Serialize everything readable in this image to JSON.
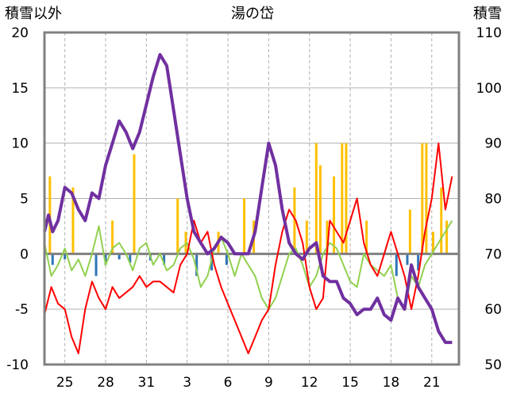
{
  "chart_data": {
    "type": "line",
    "title": "湯の岱",
    "ylabel_left": "積雪以外",
    "ylabel_right": "積雪",
    "ylim_left": [
      -10,
      20
    ],
    "yticks_left": [
      -10,
      -5,
      0,
      5,
      10,
      15,
      20
    ],
    "ylim_right": [
      50,
      110
    ],
    "yticks_right": [
      50,
      60,
      70,
      80,
      90,
      100,
      110
    ],
    "xlim": [
      0,
      30.5
    ],
    "xtick_positions": [
      1.5,
      4.5,
      7.5,
      10.5,
      13.5,
      16.5,
      19.5,
      22.5,
      25.5,
      28.5
    ],
    "xtick_labels": [
      "25",
      "28",
      "31",
      "3",
      "6",
      "9",
      "12",
      "15",
      "18",
      "21"
    ],
    "grid": true,
    "colors": {
      "frame": "#808080",
      "grid": "#b0b0b0",
      "zero_line": "#7f7f7f",
      "precip_bars": "#ffc000",
      "negative_bars": "#2e75b6",
      "temp_max": "#ff0000",
      "temp_min": "#92d050",
      "snow_depth": "#7030a0"
    },
    "series": [
      {
        "role": "precip_bars",
        "values": [
          [
            0.4,
            7
          ],
          [
            2.1,
            6
          ],
          [
            5.0,
            3
          ],
          [
            6.6,
            9
          ],
          [
            9.8,
            5
          ],
          [
            10.4,
            2
          ],
          [
            12.8,
            2
          ],
          [
            14.7,
            5
          ],
          [
            15.4,
            3
          ],
          [
            18.4,
            6
          ],
          [
            19.3,
            3
          ],
          [
            20.0,
            10
          ],
          [
            20.3,
            8
          ],
          [
            20.8,
            3
          ],
          [
            21.3,
            7
          ],
          [
            21.9,
            10
          ],
          [
            22.2,
            10
          ],
          [
            23.7,
            3
          ],
          [
            26.9,
            4
          ],
          [
            27.8,
            10
          ],
          [
            28.1,
            10
          ],
          [
            28.6,
            2
          ],
          [
            29.2,
            6
          ],
          [
            29.6,
            3
          ]
        ]
      },
      {
        "role": "negative_bars",
        "values": [
          [
            0.6,
            -1
          ],
          [
            1.5,
            -0.5
          ],
          [
            3.8,
            -2
          ],
          [
            4.5,
            -1
          ],
          [
            5.5,
            -0.5
          ],
          [
            6.3,
            -0.8
          ],
          [
            7.8,
            -0.6
          ],
          [
            8.8,
            -1
          ],
          [
            11.2,
            -2
          ],
          [
            12.3,
            -1.5
          ],
          [
            13.4,
            -1
          ],
          [
            25.9,
            -2
          ],
          [
            26.7,
            -1
          ],
          [
            27.5,
            -1.5
          ]
        ]
      },
      {
        "role": "temp_max",
        "axis": "left",
        "x": [
          0,
          0.5,
          1,
          1.5,
          2,
          2.5,
          3,
          3.5,
          4,
          4.5,
          5,
          5.5,
          6,
          6.5,
          7,
          7.5,
          8,
          8.5,
          9,
          9.5,
          10,
          10.5,
          11,
          11.5,
          12,
          12.5,
          13,
          13.5,
          14,
          14.5,
          15,
          15.5,
          16,
          16.5,
          17,
          17.5,
          18,
          18.5,
          19,
          19.5,
          20,
          20.5,
          21,
          21.5,
          22,
          22.5,
          23,
          23.5,
          24,
          24.5,
          25,
          25.5,
          26,
          26.5,
          27,
          27.5,
          28,
          28.5,
          29,
          29.5,
          30
        ],
        "values": [
          -5.5,
          -3,
          -4.5,
          -5,
          -7.5,
          -9,
          -5,
          -2.5,
          -4,
          -5,
          -3,
          -4,
          -3.5,
          -3,
          -2,
          -3,
          -2.5,
          -2.5,
          -3,
          -3.5,
          -1,
          0,
          3,
          1,
          2,
          -1,
          -3,
          -4.5,
          -6,
          -7.5,
          -9,
          -7.5,
          -6,
          -5,
          -1,
          2,
          4,
          3,
          1,
          -3,
          -5,
          -4,
          3,
          2,
          1,
          3,
          5,
          1,
          -1,
          -2,
          0,
          2,
          0,
          -2,
          -5,
          -2,
          2,
          5,
          10,
          4,
          7
        ]
      },
      {
        "role": "temp_min",
        "axis": "left",
        "x": [
          0,
          0.5,
          1,
          1.5,
          2,
          2.5,
          3,
          3.5,
          4,
          4.5,
          5,
          5.5,
          6,
          6.5,
          7,
          7.5,
          8,
          8.5,
          9,
          9.5,
          10,
          10.5,
          11,
          11.5,
          12,
          12.5,
          13,
          13.5,
          14,
          14.5,
          15,
          15.5,
          16,
          16.5,
          17,
          17.5,
          18,
          18.5,
          19,
          19.5,
          20,
          20.5,
          21,
          21.5,
          22,
          22.5,
          23,
          23.5,
          24,
          24.5,
          25,
          25.5,
          26,
          26.5,
          27,
          27.5,
          28,
          28.5,
          29,
          29.5,
          30
        ],
        "values": [
          1,
          -2,
          -1,
          0.5,
          -1.5,
          -0.5,
          -2,
          0,
          2.5,
          -1,
          0.5,
          1,
          0,
          -1.5,
          0.5,
          1,
          -1,
          0,
          -1.5,
          -1,
          0.5,
          1,
          -0.5,
          -3,
          -2,
          0.5,
          1.5,
          0,
          -2,
          0,
          -1,
          -2,
          -4,
          -5,
          -4,
          -2,
          0,
          0.5,
          -1,
          -3,
          -2,
          0,
          1,
          0.5,
          -1,
          -2.5,
          -3,
          0,
          -1,
          -1.5,
          -2,
          -1,
          -4,
          -5,
          -2,
          -3,
          -1,
          0,
          1,
          2,
          3
        ]
      },
      {
        "role": "snow_depth",
        "axis": "right",
        "x": [
          0,
          0.3,
          0.6,
          1,
          1.5,
          2,
          2.5,
          3,
          3.5,
          4,
          4.5,
          5,
          5.5,
          6,
          6.5,
          7,
          7.5,
          8,
          8.5,
          9,
          9.5,
          10,
          10.5,
          11,
          11.5,
          12,
          12.5,
          13,
          13.5,
          14,
          14.5,
          15,
          15.5,
          16,
          16.5,
          17,
          17.5,
          18,
          18.5,
          19,
          19.5,
          20,
          20.5,
          21,
          21.5,
          22,
          22.5,
          23,
          23.5,
          24,
          24.5,
          25,
          25.5,
          26,
          26.5,
          27,
          27.5,
          28,
          28.5,
          29,
          29.5,
          30
        ],
        "values": [
          74,
          77,
          74,
          76,
          82,
          81,
          78,
          76,
          81,
          80,
          86,
          90,
          94,
          92,
          89,
          92,
          97,
          102,
          106,
          104,
          96,
          88,
          80,
          74,
          72,
          70,
          71,
          73,
          72,
          70,
          70,
          70,
          74,
          82,
          90,
          86,
          78,
          72,
          70,
          69,
          71,
          72,
          66,
          65,
          65,
          62,
          61,
          59,
          60,
          60,
          62,
          59,
          58,
          62,
          60,
          68,
          64,
          62,
          60,
          56,
          54,
          54
        ]
      }
    ]
  }
}
